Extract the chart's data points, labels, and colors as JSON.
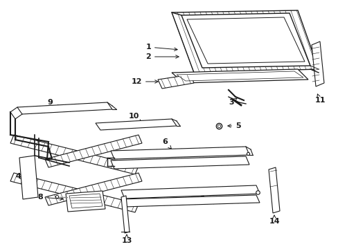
{
  "bg_color": "#ffffff",
  "lc": "#1a1a1a",
  "fig_width": 4.89,
  "fig_height": 3.6,
  "dpi": 100
}
